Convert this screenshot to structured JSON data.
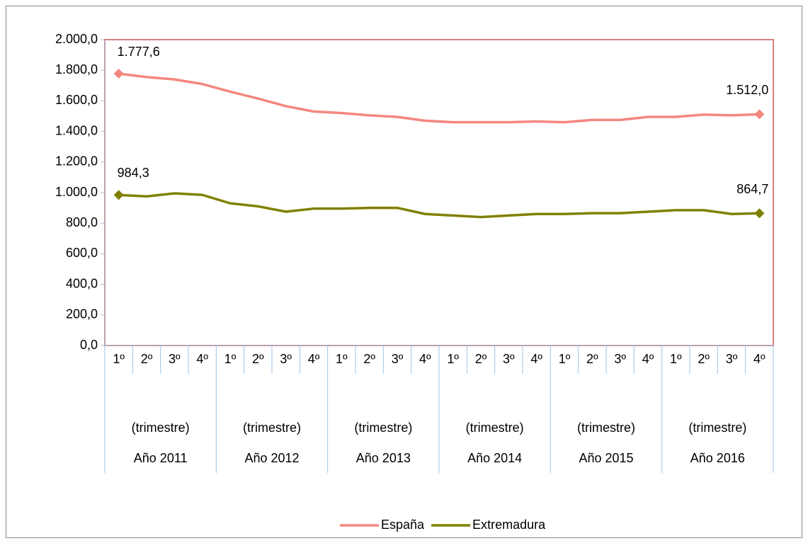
{
  "chart_data": {
    "type": "line",
    "categories": [
      "1º",
      "2º",
      "3º",
      "4º",
      "1º",
      "2º",
      "3º",
      "4º",
      "1º",
      "2º",
      "3º",
      "4º",
      "1º",
      "2º",
      "3º",
      "4º",
      "1º",
      "2º",
      "3º",
      "4º",
      "1º",
      "2º",
      "3º",
      "4º"
    ],
    "groups": [
      {
        "period": "(trimestre)",
        "year": "Año 2011"
      },
      {
        "period": "(trimestre)",
        "year": "Año 2012"
      },
      {
        "period": "(trimestre)",
        "year": "Año 2013"
      },
      {
        "period": "(trimestre)",
        "year": "Año 2014"
      },
      {
        "period": "(trimestre)",
        "year": "Año 2015"
      },
      {
        "period": "(trimestre)",
        "year": "Año 2016"
      }
    ],
    "series": [
      {
        "name": "España",
        "color": "#f4877f",
        "values": [
          1777.6,
          1755,
          1740,
          1710,
          1660,
          1615,
          1565,
          1530,
          1520,
          1505,
          1495,
          1470,
          1460,
          1460,
          1460,
          1465,
          1460,
          1475,
          1475,
          1495,
          1495,
          1510,
          1505,
          1512.0
        ],
        "value_labels": [
          "1.777,6",
          null,
          null,
          null,
          null,
          null,
          null,
          null,
          null,
          null,
          null,
          null,
          null,
          null,
          null,
          null,
          null,
          null,
          null,
          null,
          null,
          null,
          null,
          "1.512,0"
        ]
      },
      {
        "name": "Extremadura",
        "color": "#808000",
        "values": [
          984.3,
          975,
          995,
          985,
          930,
          910,
          875,
          895,
          895,
          900,
          900,
          860,
          850,
          840,
          850,
          860,
          860,
          865,
          865,
          875,
          885,
          885,
          860,
          864.7
        ],
        "value_labels": [
          "984,3",
          null,
          null,
          null,
          null,
          null,
          null,
          null,
          null,
          null,
          null,
          null,
          null,
          null,
          null,
          null,
          null,
          null,
          null,
          null,
          null,
          null,
          null,
          "864,7"
        ]
      }
    ],
    "ylim": [
      0,
      2000
    ],
    "yticks": [
      {
        "value": 0,
        "label": "0,0"
      },
      {
        "value": 200,
        "label": "200,0"
      },
      {
        "value": 400,
        "label": "400,0"
      },
      {
        "value": 600,
        "label": "600,0"
      },
      {
        "value": 800,
        "label": "800,0"
      },
      {
        "value": 1000,
        "label": "1.000,0"
      },
      {
        "value": 1200,
        "label": "1.200,0"
      },
      {
        "value": 1400,
        "label": "1.400,0"
      },
      {
        "value": 1600,
        "label": "1.600,0"
      },
      {
        "value": 1800,
        "label": "1.800,0"
      },
      {
        "value": 2000,
        "label": "2.000,0"
      }
    ],
    "legend": "bottom"
  }
}
